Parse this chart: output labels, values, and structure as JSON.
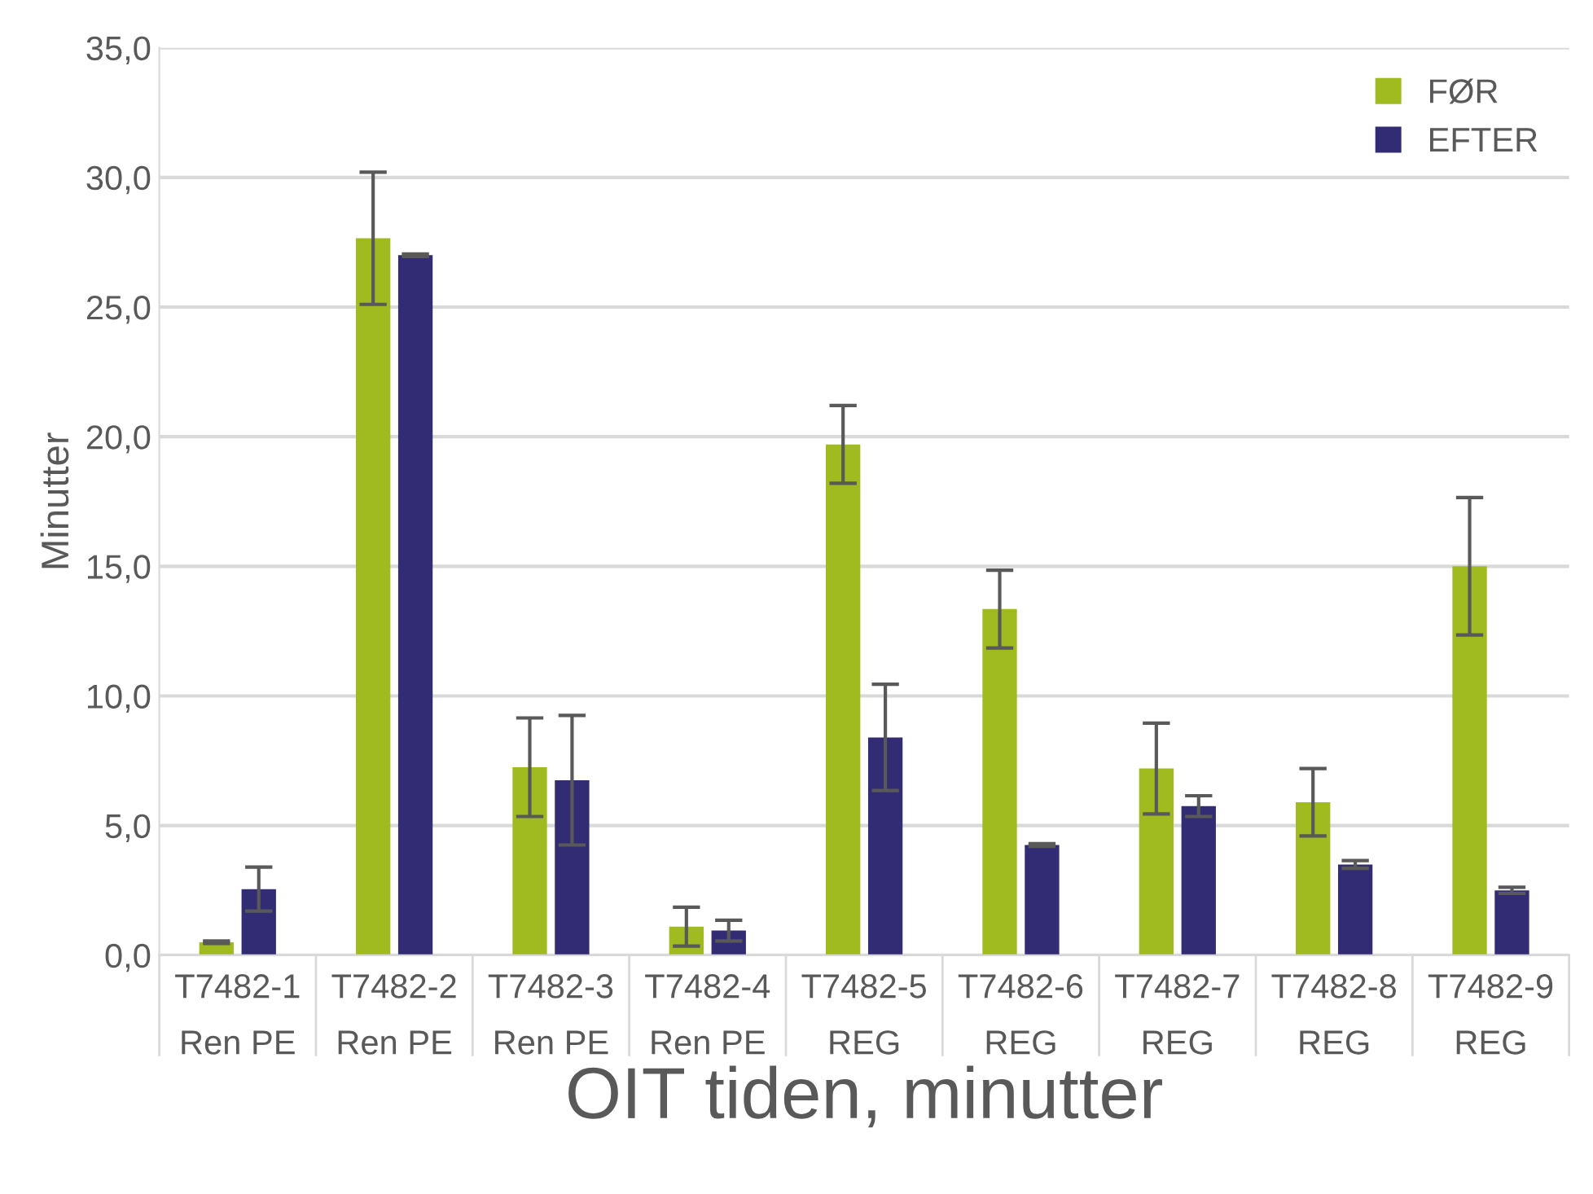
{
  "chart_data": {
    "type": "bar",
    "xlabel": "OIT tiden, minutter",
    "ylabel": "Minutter",
    "categories": [
      "T7482-1\nRen PE",
      "T7482-2\nRen PE",
      "T7482-3\nRen PE",
      "T7482-4\nRen PE",
      "T7482-5\nREG",
      "T7482-6\nREG",
      "T7482-7\nREG",
      "T7482-8\nREG",
      "T7482-9\nREG"
    ],
    "series": [
      {
        "name": "FØR",
        "color": "#9fbb1f",
        "values": [
          0.5,
          27.65,
          7.25,
          1.1,
          19.7,
          13.35,
          7.2,
          5.9,
          15.0
        ],
        "errors": [
          0.05,
          2.55,
          1.9,
          0.75,
          1.5,
          1.5,
          1.75,
          1.3,
          2.65
        ]
      },
      {
        "name": "EFTER",
        "color": "#322c74",
        "values": [
          2.55,
          27.0,
          6.75,
          0.95,
          8.4,
          4.25,
          5.75,
          3.5,
          2.5
        ],
        "errors": [
          0.85,
          0.05,
          2.5,
          0.4,
          2.05,
          0.05,
          0.4,
          0.15,
          0.12
        ]
      }
    ],
    "ylim": [
      0,
      35
    ],
    "yticks": [
      {
        "value": 0,
        "label": "0,0"
      },
      {
        "value": 5,
        "label": "5,0"
      },
      {
        "value": 10,
        "label": "10,0"
      },
      {
        "value": 15,
        "label": "15,0"
      },
      {
        "value": 20,
        "label": "20,0"
      },
      {
        "value": 25,
        "label": "25,0"
      },
      {
        "value": 30,
        "label": "30,0"
      },
      {
        "value": 35,
        "label": "35,0"
      }
    ],
    "grid": "y",
    "legend": "top right"
  }
}
